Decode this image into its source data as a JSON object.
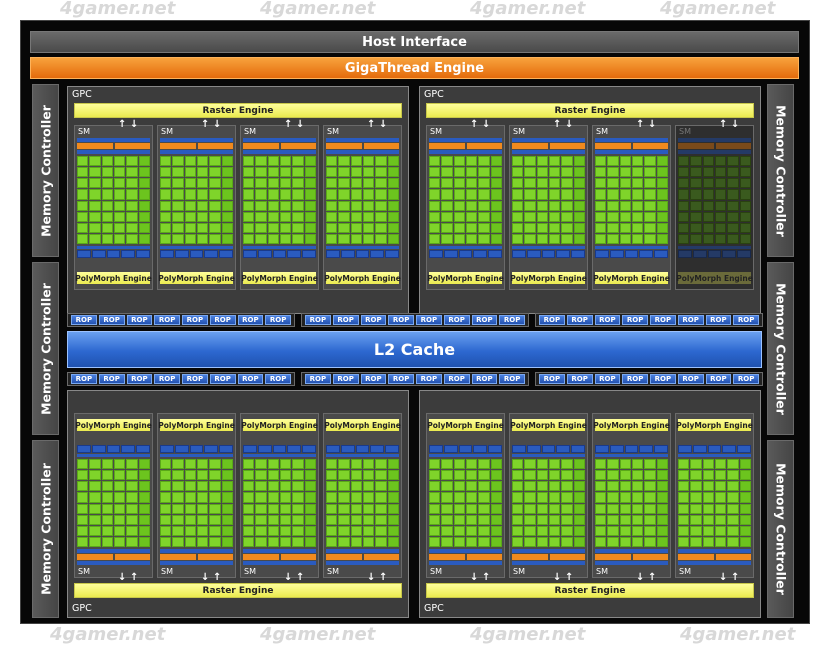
{
  "host_interface": "Host Interface",
  "gigathread_engine": "GigaThread Engine",
  "memory_controller_label": "Memory Controller",
  "gpc_label": "GPC",
  "raster_engine_label": "Raster Engine",
  "sm_label": "SM",
  "polymorph_engine_label": "PolyMorph Engine",
  "rop_label": "ROP",
  "l2_cache": "L2 Cache",
  "watermark": "4gamer.net",
  "colors": {
    "host": "#555555",
    "gigathread": "#f0861e",
    "core": "#7fd42a",
    "raster": "#f4f46a",
    "l2": "#2d68d0",
    "disabled_sm": "#3a5a1e"
  },
  "disabled_sm": "top-right GPC, fourth SM"
}
